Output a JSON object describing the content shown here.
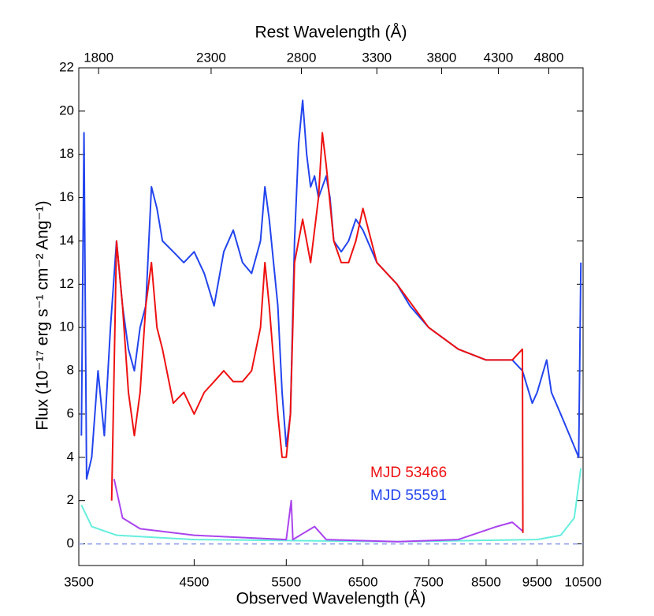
{
  "chart_data": {
    "type": "line",
    "xlabel": "Observed Wavelength (Å)",
    "x2label": "Rest Wavelength (Å)",
    "ylabel": "Flux (10⁻¹⁷ erg s⁻¹ cm⁻² Ang⁻¹)",
    "xscale": "log",
    "xlim": [
      3500,
      10500
    ],
    "xticks": [
      3500,
      4500,
      5500,
      6500,
      7500,
      8500,
      9500,
      10500
    ],
    "x2scale": "log",
    "x2lim": [
      1724,
      5172
    ],
    "x2ticks": [
      1800,
      2300,
      2800,
      3300,
      3800,
      4300,
      4800
    ],
    "ylim": [
      -1,
      22
    ],
    "yticks": [
      0,
      2,
      4,
      6,
      8,
      10,
      12,
      14,
      16,
      18,
      20,
      22
    ],
    "hline": 0,
    "series": [
      {
        "name": "MJD 53466",
        "color": "#ee1111",
        "x": [
          3760,
          3800,
          3850,
          3900,
          3950,
          4000,
          4050,
          4100,
          4150,
          4200,
          4300,
          4400,
          4500,
          4600,
          4700,
          4800,
          4900,
          5000,
          5100,
          5200,
          5250,
          5300,
          5400,
          5450,
          5500,
          5550,
          5600,
          5700,
          5800,
          5900,
          5950,
          6000,
          6100,
          6200,
          6300,
          6400,
          6500,
          6700,
          7000,
          7500,
          8000,
          8500,
          9000,
          9200,
          9210
        ],
        "values": [
          2,
          14,
          11,
          7,
          5,
          7,
          11,
          13,
          10,
          9,
          6.5,
          7,
          6,
          7,
          7.5,
          8,
          7.5,
          7.5,
          8,
          10,
          13,
          11,
          6,
          4,
          4,
          6,
          13,
          15,
          13,
          16,
          19,
          17.5,
          14,
          13,
          13,
          14,
          15.5,
          13,
          12,
          10,
          9,
          8.5,
          8.5,
          9,
          0.5
        ]
      },
      {
        "name": "MJD 55591",
        "color": "#2244ee",
        "x": [
          3520,
          3540,
          3560,
          3600,
          3650,
          3700,
          3750,
          3800,
          3850,
          3900,
          3950,
          4000,
          4050,
          4100,
          4150,
          4200,
          4300,
          4400,
          4500,
          4600,
          4700,
          4800,
          4900,
          5000,
          5100,
          5200,
          5250,
          5300,
          5400,
          5450,
          5500,
          5550,
          5600,
          5650,
          5700,
          5750,
          5800,
          5850,
          5900,
          6000,
          6050,
          6100,
          6200,
          6300,
          6400,
          6500,
          6700,
          7000,
          7200,
          7500,
          8000,
          8500,
          9000,
          9200,
          9400,
          9500,
          9700,
          9800,
          10000,
          10200,
          10400,
          10450
        ],
        "values": [
          5,
          19,
          3,
          4,
          8,
          5,
          10,
          14,
          11,
          9,
          8,
          10,
          11,
          16.5,
          15.5,
          14,
          13.5,
          13,
          13.5,
          12.5,
          11,
          13.5,
          14.5,
          13,
          12.5,
          14,
          16.5,
          15,
          11,
          7,
          4.5,
          6,
          14,
          18.5,
          20.5,
          18,
          16.5,
          17,
          16,
          17,
          16,
          14,
          13.5,
          14,
          15,
          14.5,
          13,
          12,
          11,
          10,
          9,
          8.5,
          8.5,
          8,
          6.5,
          7,
          8.5,
          7,
          6,
          5,
          4,
          13
        ]
      },
      {
        "color": "#aa44ee",
        "x": [
          3780,
          3850,
          4000,
          4500,
          5500,
          5560,
          5580,
          5850,
          6000,
          7000,
          8000,
          8700,
          9000,
          9200
        ],
        "values": [
          3,
          1.2,
          0.7,
          0.4,
          0.2,
          2,
          0.2,
          0.8,
          0.2,
          0.1,
          0.2,
          0.8,
          1,
          0.6
        ]
      },
      {
        "color": "#66eedd",
        "x": [
          3520,
          3600,
          3800,
          4500,
          7000,
          9500,
          10000,
          10300,
          10450
        ],
        "values": [
          1.8,
          0.8,
          0.4,
          0.2,
          0.1,
          0.2,
          0.4,
          1.2,
          3.5
        ]
      }
    ]
  }
}
